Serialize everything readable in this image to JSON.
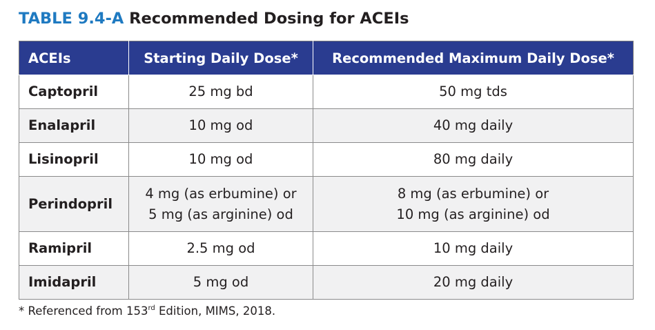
{
  "title": {
    "number": "TABLE 9.4-A",
    "text": "Recommended Dosing for ACEIs"
  },
  "table": {
    "headers": [
      "ACEIs",
      "Starting Daily Dose*",
      "Recommended Maximum Daily Dose*"
    ],
    "rows": [
      {
        "drug": "Captopril",
        "start": [
          "25 mg bd"
        ],
        "max": [
          "50 mg tds"
        ]
      },
      {
        "drug": "Enalapril",
        "start": [
          "10 mg od"
        ],
        "max": [
          "40 mg daily"
        ]
      },
      {
        "drug": "Lisinopril",
        "start": [
          "10 mg od"
        ],
        "max": [
          "80 mg daily"
        ]
      },
      {
        "drug": "Perindopril",
        "start": [
          "4 mg (as erbumine) or",
          "5 mg (as arginine) od"
        ],
        "max": [
          "8 mg (as erbumine) or",
          "10 mg (as arginine) od"
        ]
      },
      {
        "drug": "Ramipril",
        "start": [
          "2.5 mg od"
        ],
        "max": [
          "10 mg daily"
        ]
      },
      {
        "drug": "Imidapril",
        "start": [
          "5 mg od"
        ],
        "max": [
          "20 mg daily"
        ]
      }
    ]
  },
  "footnote": {
    "prefix": "* Referenced from 153",
    "sup": "rd",
    "suffix": " Edition, MIMS, 2018."
  }
}
